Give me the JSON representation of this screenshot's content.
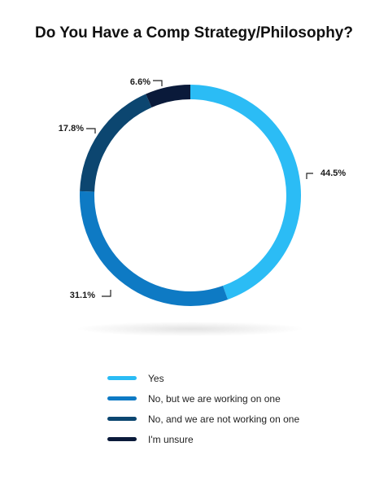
{
  "title": "Do You Have a Comp Strategy/Philosophy?",
  "chart_data": {
    "type": "pie",
    "variant": "donut",
    "title": "Do You Have a Comp Strategy/Philosophy?",
    "legend_position": "bottom",
    "series": [
      {
        "name": "Yes",
        "value": 44.5,
        "label": "44.5%",
        "color": "#2bbcf5"
      },
      {
        "name": "No, but we are working on one",
        "value": 31.1,
        "label": "31.1%",
        "color": "#0e7ac4"
      },
      {
        "name": "No, and we are not working on one",
        "value": 17.8,
        "label": "17.8%",
        "color": "#0c4670"
      },
      {
        "name": "I'm unsure",
        "value": 6.6,
        "label": "6.6%",
        "color": "#0a1a3a"
      }
    ]
  }
}
